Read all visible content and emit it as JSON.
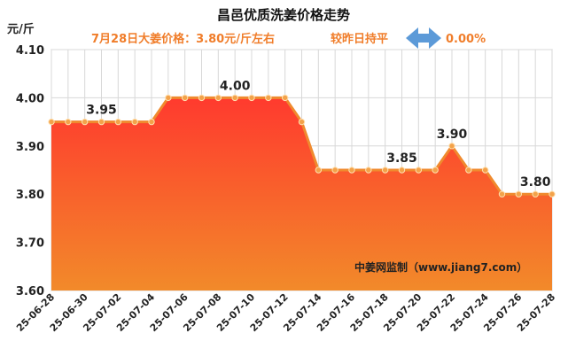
{
  "header": {
    "title": "昌邑优质洗姜价格走势",
    "price_note": "7月28日大姜价格：3.80元/斤左右",
    "compare_label": "较昨日持平",
    "change_percent": "0.00%",
    "arrow_icon": "double-arrow-icon"
  },
  "watermark": "中姜网监制（www.jiang7.com）",
  "colors": {
    "line": "#f08a2e",
    "marker": "#f3a24a",
    "area_top": "#ff3a2e",
    "area_bottom": "#f28a2a",
    "accent_text": "#f07d2a",
    "arrow": "#5c9ad8",
    "grid": "#d8d8d8"
  },
  "chart_data": {
    "type": "area",
    "ylabel": "元/斤",
    "ylim": [
      3.6,
      4.1
    ],
    "yticks": [
      "3.60",
      "3.70",
      "3.80",
      "3.90",
      "4.00",
      "4.10"
    ],
    "x_tick_labels": [
      "25-06-28",
      "25-06-30",
      "25-07-02",
      "25-07-04",
      "25-07-06",
      "25-07-08",
      "25-07-10",
      "25-07-12",
      "25-07-14",
      "25-07-16",
      "25-07-18",
      "25-07-20",
      "25-07-22",
      "25-07-24",
      "25-07-26",
      "25-07-28"
    ],
    "x": [
      "25-06-28",
      "25-06-29",
      "25-06-30",
      "25-07-01",
      "25-07-02",
      "25-07-03",
      "25-07-04",
      "25-07-05",
      "25-07-06",
      "25-07-07",
      "25-07-08",
      "25-07-09",
      "25-07-10",
      "25-07-11",
      "25-07-12",
      "25-07-13",
      "25-07-14",
      "25-07-15",
      "25-07-16",
      "25-07-17",
      "25-07-18",
      "25-07-19",
      "25-07-20",
      "25-07-21",
      "25-07-22",
      "25-07-23",
      "25-07-24",
      "25-07-25",
      "25-07-26",
      "25-07-27",
      "25-07-28"
    ],
    "values": [
      3.95,
      3.95,
      3.95,
      3.95,
      3.95,
      3.95,
      3.95,
      4.0,
      4.0,
      4.0,
      4.0,
      4.0,
      4.0,
      4.0,
      4.0,
      3.95,
      3.85,
      3.85,
      3.85,
      3.85,
      3.85,
      3.85,
      3.85,
      3.85,
      3.9,
      3.85,
      3.85,
      3.8,
      3.8,
      3.8,
      3.8
    ],
    "data_labels": [
      {
        "x": "25-07-01",
        "text": "3.95"
      },
      {
        "x": "25-07-09",
        "text": "4.00"
      },
      {
        "x": "25-07-19",
        "text": "3.85"
      },
      {
        "x": "25-07-22",
        "text": "3.90"
      },
      {
        "x": "25-07-27",
        "text": "3.80"
      }
    ],
    "grid": true
  }
}
